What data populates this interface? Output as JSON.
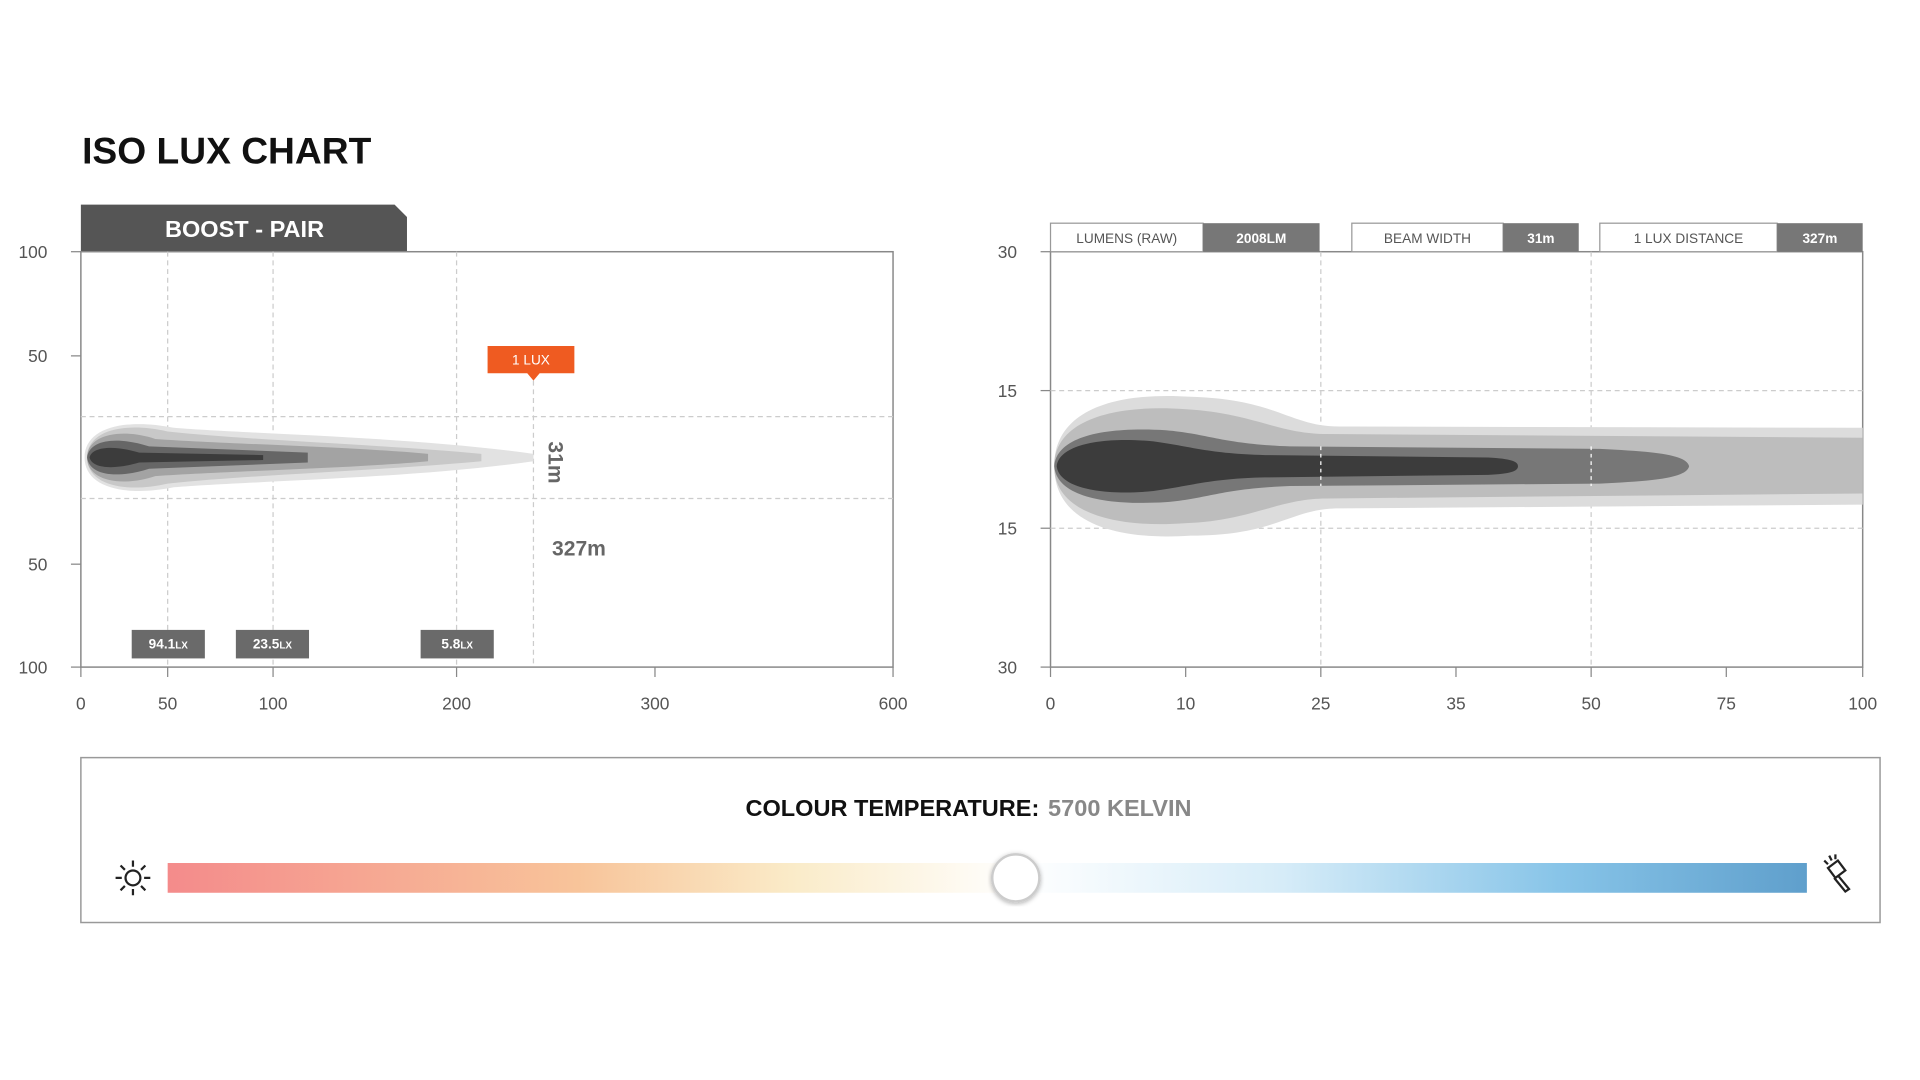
{
  "title": "ISO LUX CHART",
  "left_panel": {
    "tab": "BOOST - PAIR",
    "y_labels": [
      "100",
      "50",
      "50",
      "100"
    ],
    "x_labels": [
      "0",
      "50",
      "100",
      "200",
      "300",
      "600"
    ],
    "marker": "1 LUX",
    "width_label": "31m",
    "distance_label": "327m",
    "badges": [
      {
        "value": "94.1",
        "unit": "LX"
      },
      {
        "value": "23.5",
        "unit": "LX"
      },
      {
        "value": "5.8",
        "unit": "LX"
      }
    ]
  },
  "right_panel": {
    "stats": [
      {
        "label": "LUMENS (RAW)",
        "value": "2008LM"
      },
      {
        "label": "BEAM WIDTH",
        "value": "31m"
      },
      {
        "label": "1 LUX DISTANCE",
        "value": "327m"
      }
    ],
    "y_labels": [
      "30",
      "15",
      "15",
      "30"
    ],
    "x_labels": [
      "0",
      "10",
      "25",
      "35",
      "50",
      "75",
      "100"
    ]
  },
  "colour_temperature": {
    "label": "COLOUR TEMPERATURE:",
    "value": "5700 KELVIN"
  }
}
